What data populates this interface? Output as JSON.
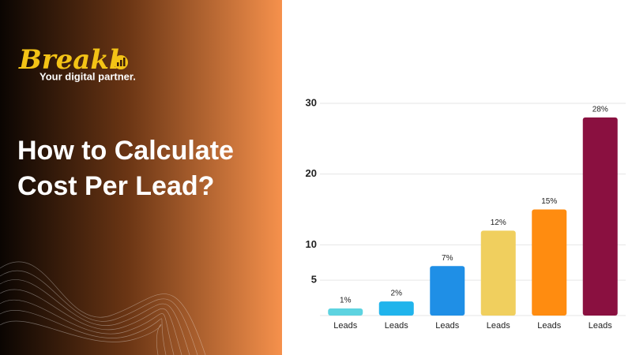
{
  "brand": {
    "name": "Breakl",
    "tagline": "Your digital partner."
  },
  "headline": [
    "How to Calculate",
    "Cost Per Lead?"
  ],
  "chart_data": {
    "type": "bar",
    "categories": [
      "Leads",
      "Leads",
      "Leads",
      "Leads",
      "Leads",
      "Leads"
    ],
    "values": [
      1,
      2,
      7,
      12,
      15,
      28
    ],
    "value_labels": [
      "1%",
      "2%",
      "7%",
      "12%",
      "15%",
      "28%"
    ],
    "colors": [
      "#5dd3e0",
      "#20b4ec",
      "#1f8fe6",
      "#f0cf5e",
      "#ff8c10",
      "#8a1040"
    ],
    "ylim": [
      0,
      31
    ],
    "yticks": [
      5,
      10,
      20,
      30
    ],
    "grid": true
  }
}
